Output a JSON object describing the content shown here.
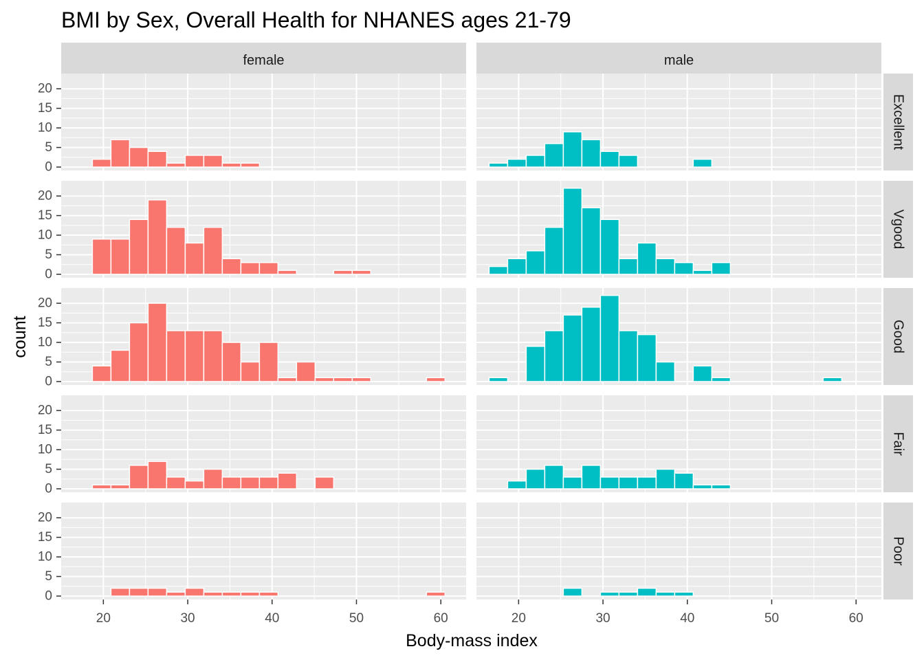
{
  "chart_data": {
    "type": "bar",
    "subtype": "faceted-histogram",
    "title": "BMI by Sex, Overall Health for NHANES ages 21-79",
    "xlabel": "Body-mass index",
    "ylabel": "count",
    "xlim": [
      15,
      63
    ],
    "ylim": [
      0,
      23
    ],
    "x_ticks": [
      20,
      30,
      40,
      50,
      60
    ],
    "y_ticks": [
      0,
      5,
      10,
      15,
      20
    ],
    "grid": true,
    "bin_width": 2.2,
    "columns": [
      "female",
      "male"
    ],
    "rows": [
      "Excellent",
      "Vgood",
      "Good",
      "Fair",
      "Poor"
    ],
    "colors": {
      "female": "#F8766D",
      "male": "#00BFC4"
    },
    "panels": [
      {
        "sex": "female",
        "health": "Excellent",
        "bin_centers": [
          19.8,
          22.0,
          24.2,
          26.4,
          28.6,
          30.8,
          33.0,
          35.2,
          37.4
        ],
        "counts": [
          2,
          7,
          5,
          4,
          1,
          3,
          3,
          1,
          1
        ]
      },
      {
        "sex": "male",
        "health": "Excellent",
        "bin_centers": [
          17.6,
          19.8,
          22.0,
          24.2,
          26.4,
          28.6,
          30.8,
          33.0,
          41.8
        ],
        "counts": [
          1,
          2,
          3,
          6,
          9,
          7,
          4,
          3,
          2
        ]
      },
      {
        "sex": "female",
        "health": "Vgood",
        "bin_centers": [
          19.8,
          22.0,
          24.2,
          26.4,
          28.6,
          30.8,
          33.0,
          35.2,
          37.4,
          39.6,
          41.8,
          48.4,
          50.6
        ],
        "counts": [
          9,
          9,
          14,
          19,
          12,
          8,
          12,
          4,
          3,
          3,
          1,
          1,
          1
        ]
      },
      {
        "sex": "male",
        "health": "Vgood",
        "bin_centers": [
          17.6,
          19.8,
          22.0,
          24.2,
          26.4,
          28.6,
          30.8,
          33.0,
          35.2,
          37.4,
          39.6,
          41.8,
          44.0
        ],
        "counts": [
          2,
          4,
          6,
          12,
          22,
          17,
          14,
          4,
          8,
          4,
          3,
          1,
          3
        ]
      },
      {
        "sex": "female",
        "health": "Good",
        "bin_centers": [
          19.8,
          22.0,
          24.2,
          26.4,
          28.6,
          30.8,
          33.0,
          35.2,
          37.4,
          39.6,
          41.8,
          44.0,
          46.2,
          48.4,
          50.6,
          59.4
        ],
        "counts": [
          4,
          8,
          15,
          20,
          13,
          13,
          13,
          10,
          5,
          10,
          1,
          5,
          1,
          1,
          1,
          1
        ]
      },
      {
        "sex": "male",
        "health": "Good",
        "bin_centers": [
          17.6,
          22.0,
          24.2,
          26.4,
          28.6,
          30.8,
          33.0,
          35.2,
          37.4,
          41.8,
          44.0,
          57.2
        ],
        "counts": [
          1,
          9,
          13,
          17,
          19,
          22,
          13,
          12,
          5,
          4,
          1,
          1
        ]
      },
      {
        "sex": "female",
        "health": "Fair",
        "bin_centers": [
          19.8,
          22.0,
          24.2,
          26.4,
          28.6,
          30.8,
          33.0,
          35.2,
          37.4,
          39.6,
          41.8,
          46.2
        ],
        "counts": [
          1,
          1,
          6,
          7,
          3,
          2,
          5,
          3,
          3,
          3,
          4,
          3
        ]
      },
      {
        "sex": "male",
        "health": "Fair",
        "bin_centers": [
          19.8,
          22.0,
          24.2,
          26.4,
          28.6,
          30.8,
          33.0,
          35.2,
          37.4,
          39.6,
          41.8,
          44.0
        ],
        "counts": [
          2,
          5,
          6,
          3,
          6,
          3,
          3,
          3,
          5,
          4,
          1,
          1
        ]
      },
      {
        "sex": "female",
        "health": "Poor",
        "bin_centers": [
          22.0,
          24.2,
          26.4,
          28.6,
          30.8,
          33.0,
          35.2,
          37.4,
          39.6,
          59.4
        ],
        "counts": [
          2,
          2,
          2,
          1,
          2,
          1,
          1,
          1,
          1,
          1
        ]
      },
      {
        "sex": "male",
        "health": "Poor",
        "bin_centers": [
          26.4,
          30.8,
          33.0,
          35.2,
          37.4,
          39.6
        ],
        "counts": [
          2,
          1,
          1,
          2,
          1,
          1
        ]
      }
    ]
  }
}
